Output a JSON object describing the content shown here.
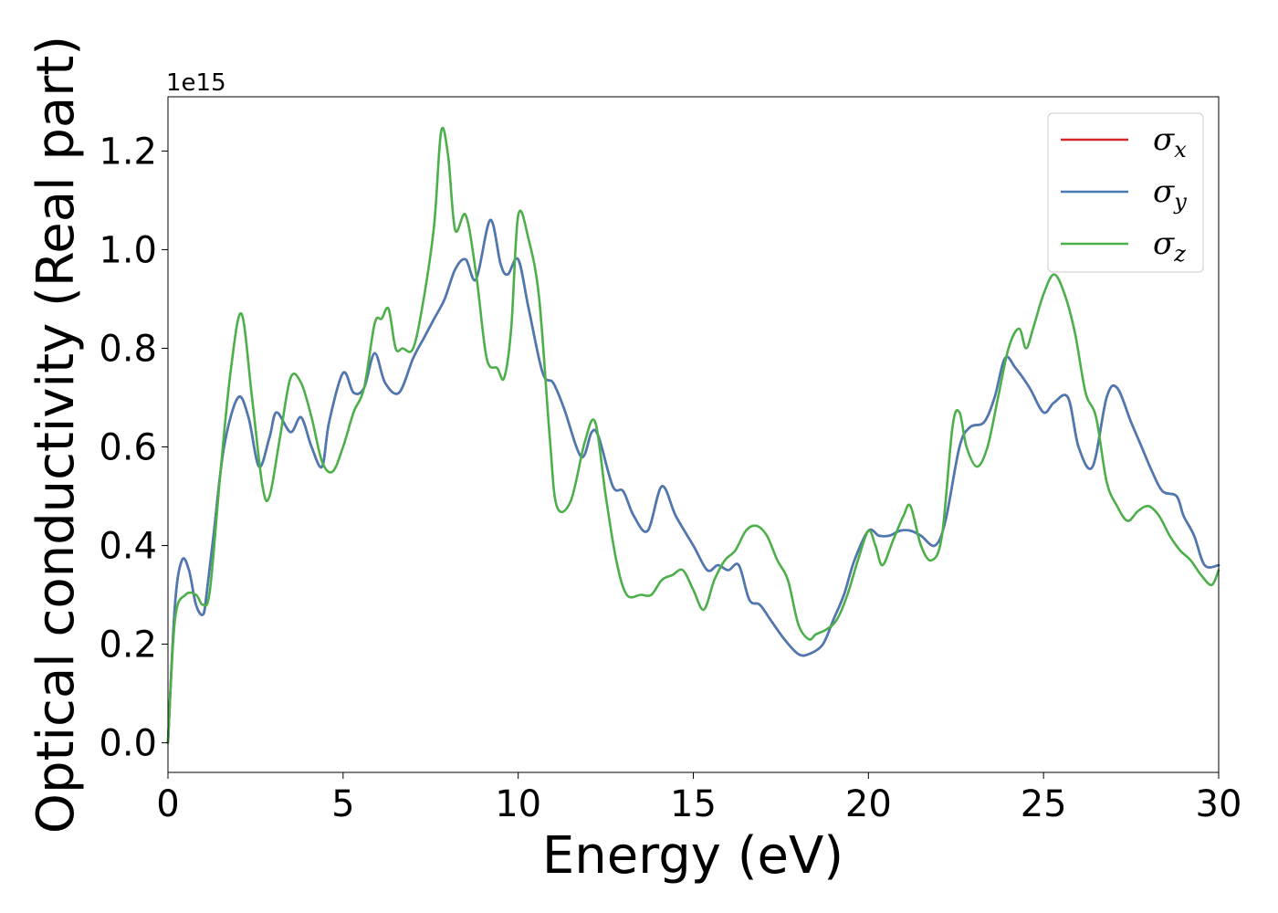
{
  "chart_data": {
    "type": "line",
    "xlabel": "Energy (eV)",
    "ylabel": "Optical conductivity (Real part)",
    "y_offset_label": "1e15",
    "xlim": [
      0,
      30
    ],
    "ylim": [
      -0.06,
      1.31
    ],
    "x_ticks": [
      0,
      5,
      10,
      15,
      20,
      25,
      30
    ],
    "x_tick_labels": [
      "0",
      "5",
      "10",
      "15",
      "20",
      "25",
      "30"
    ],
    "y_ticks": [
      0.0,
      0.2,
      0.4,
      0.6,
      0.8,
      1.0,
      1.2
    ],
    "y_tick_labels": [
      "0.0",
      "0.2",
      "0.4",
      "0.6",
      "0.8",
      "1.0",
      "1.2"
    ],
    "grid": false,
    "legend_position": "top-right",
    "series": [
      {
        "name": "σx",
        "label_base": "σ",
        "label_sub": "x",
        "color": "#d62728",
        "x": [
          0,
          0.2,
          0.4,
          0.6,
          0.8,
          1.0,
          1.1,
          1.3,
          1.6,
          2.0,
          2.3,
          2.6,
          2.9,
          3.1,
          3.5,
          3.8,
          4.1,
          4.4,
          4.6,
          5.0,
          5.3,
          5.6,
          5.9,
          6.2,
          6.6,
          7.0,
          7.3,
          7.6,
          7.9,
          8.2,
          8.5,
          8.8,
          9.2,
          9.5,
          9.7,
          10.0,
          10.3,
          10.7,
          11.0,
          11.3,
          11.8,
          12.1,
          12.3,
          12.7,
          13.0,
          13.3,
          13.7,
          14.1,
          14.5,
          15.0,
          15.4,
          15.7,
          16.0,
          16.3,
          16.6,
          16.9,
          17.2,
          17.6,
          18.0,
          18.3,
          18.7,
          19.0,
          19.3,
          19.6,
          20.0,
          20.3,
          20.6,
          20.9,
          21.2,
          21.5,
          21.9,
          22.2,
          22.6,
          22.9,
          23.3,
          23.6,
          23.9,
          24.2,
          24.6,
          25.0,
          25.3,
          25.7,
          26.0,
          26.4,
          26.8,
          27.1,
          27.5,
          27.8,
          28.1,
          28.4,
          28.8,
          29.0,
          29.3,
          29.6,
          30.0
        ],
        "y": [
          0.0,
          0.28,
          0.37,
          0.35,
          0.28,
          0.26,
          0.3,
          0.42,
          0.6,
          0.7,
          0.66,
          0.56,
          0.62,
          0.67,
          0.63,
          0.66,
          0.6,
          0.56,
          0.65,
          0.75,
          0.71,
          0.72,
          0.79,
          0.73,
          0.71,
          0.78,
          0.82,
          0.86,
          0.9,
          0.96,
          0.98,
          0.94,
          1.06,
          0.97,
          0.95,
          0.98,
          0.88,
          0.75,
          0.73,
          0.68,
          0.58,
          0.63,
          0.62,
          0.52,
          0.51,
          0.46,
          0.43,
          0.52,
          0.46,
          0.4,
          0.35,
          0.36,
          0.35,
          0.36,
          0.29,
          0.28,
          0.25,
          0.21,
          0.18,
          0.18,
          0.2,
          0.25,
          0.3,
          0.37,
          0.43,
          0.42,
          0.42,
          0.43,
          0.43,
          0.42,
          0.4,
          0.45,
          0.6,
          0.64,
          0.65,
          0.7,
          0.78,
          0.76,
          0.72,
          0.67,
          0.69,
          0.7,
          0.6,
          0.56,
          0.7,
          0.72,
          0.65,
          0.6,
          0.55,
          0.51,
          0.5,
          0.46,
          0.42,
          0.36,
          0.36
        ]
      },
      {
        "name": "σy",
        "label_base": "σ",
        "label_sub": "y",
        "color": "#4a7ab4",
        "x": [
          0,
          0.2,
          0.4,
          0.6,
          0.8,
          1.0,
          1.1,
          1.3,
          1.6,
          2.0,
          2.3,
          2.6,
          2.9,
          3.1,
          3.5,
          3.8,
          4.1,
          4.4,
          4.6,
          5.0,
          5.3,
          5.6,
          5.9,
          6.2,
          6.6,
          7.0,
          7.3,
          7.6,
          7.9,
          8.2,
          8.5,
          8.8,
          9.2,
          9.5,
          9.7,
          10.0,
          10.3,
          10.7,
          11.0,
          11.3,
          11.8,
          12.1,
          12.3,
          12.7,
          13.0,
          13.3,
          13.7,
          14.1,
          14.5,
          15.0,
          15.4,
          15.7,
          16.0,
          16.3,
          16.6,
          16.9,
          17.2,
          17.6,
          18.0,
          18.3,
          18.7,
          19.0,
          19.3,
          19.6,
          20.0,
          20.3,
          20.6,
          20.9,
          21.2,
          21.5,
          21.9,
          22.2,
          22.6,
          22.9,
          23.3,
          23.6,
          23.9,
          24.2,
          24.6,
          25.0,
          25.3,
          25.7,
          26.0,
          26.4,
          26.8,
          27.1,
          27.5,
          27.8,
          28.1,
          28.4,
          28.8,
          29.0,
          29.3,
          29.6,
          30.0
        ],
        "y": [
          0.0,
          0.28,
          0.37,
          0.35,
          0.28,
          0.26,
          0.3,
          0.42,
          0.6,
          0.7,
          0.66,
          0.56,
          0.62,
          0.67,
          0.63,
          0.66,
          0.6,
          0.56,
          0.65,
          0.75,
          0.71,
          0.72,
          0.79,
          0.73,
          0.71,
          0.78,
          0.82,
          0.86,
          0.9,
          0.96,
          0.98,
          0.94,
          1.06,
          0.97,
          0.95,
          0.98,
          0.88,
          0.75,
          0.73,
          0.68,
          0.58,
          0.63,
          0.62,
          0.52,
          0.51,
          0.46,
          0.43,
          0.52,
          0.46,
          0.4,
          0.35,
          0.36,
          0.35,
          0.36,
          0.29,
          0.28,
          0.25,
          0.21,
          0.18,
          0.18,
          0.2,
          0.25,
          0.3,
          0.37,
          0.43,
          0.42,
          0.42,
          0.43,
          0.43,
          0.42,
          0.4,
          0.45,
          0.6,
          0.64,
          0.65,
          0.7,
          0.78,
          0.76,
          0.72,
          0.67,
          0.69,
          0.7,
          0.6,
          0.56,
          0.7,
          0.72,
          0.65,
          0.6,
          0.55,
          0.51,
          0.5,
          0.46,
          0.42,
          0.36,
          0.36
        ]
      },
      {
        "name": "σz",
        "label_base": "σ",
        "label_sub": "z",
        "color": "#4daf4a",
        "x": [
          0,
          0.2,
          0.5,
          0.8,
          1.0,
          1.2,
          1.5,
          1.8,
          2.1,
          2.4,
          2.7,
          2.9,
          3.2,
          3.5,
          3.8,
          4.1,
          4.4,
          4.7,
          5.0,
          5.3,
          5.6,
          5.9,
          6.1,
          6.3,
          6.5,
          6.7,
          7.0,
          7.3,
          7.6,
          7.8,
          8.0,
          8.2,
          8.5,
          8.8,
          9.1,
          9.4,
          9.6,
          9.8,
          10.0,
          10.3,
          10.6,
          10.9,
          11.1,
          11.5,
          11.9,
          12.2,
          12.5,
          12.8,
          13.1,
          13.5,
          13.8,
          14.1,
          14.4,
          14.7,
          15.0,
          15.3,
          15.6,
          15.9,
          16.2,
          16.5,
          16.8,
          17.1,
          17.4,
          17.7,
          18.0,
          18.3,
          18.5,
          18.8,
          19.1,
          19.4,
          19.7,
          20.0,
          20.2,
          20.4,
          20.7,
          21.0,
          21.2,
          21.5,
          21.8,
          22.1,
          22.4,
          22.6,
          22.8,
          23.1,
          23.4,
          23.7,
          24.0,
          24.3,
          24.5,
          24.7,
          25.0,
          25.3,
          25.6,
          25.9,
          26.2,
          26.5,
          26.8,
          27.1,
          27.4,
          27.7,
          28.0,
          28.3,
          28.6,
          28.9,
          29.2,
          29.5,
          29.8,
          30.0
        ],
        "y": [
          0.0,
          0.25,
          0.3,
          0.3,
          0.28,
          0.31,
          0.55,
          0.76,
          0.87,
          0.7,
          0.52,
          0.5,
          0.62,
          0.74,
          0.73,
          0.66,
          0.57,
          0.55,
          0.6,
          0.67,
          0.72,
          0.85,
          0.86,
          0.88,
          0.8,
          0.8,
          0.8,
          0.9,
          1.05,
          1.24,
          1.19,
          1.04,
          1.07,
          0.95,
          0.78,
          0.76,
          0.74,
          0.84,
          1.07,
          1.02,
          0.9,
          0.62,
          0.48,
          0.49,
          0.61,
          0.65,
          0.5,
          0.37,
          0.3,
          0.3,
          0.3,
          0.33,
          0.34,
          0.35,
          0.31,
          0.27,
          0.33,
          0.37,
          0.39,
          0.43,
          0.44,
          0.42,
          0.37,
          0.33,
          0.24,
          0.21,
          0.22,
          0.23,
          0.25,
          0.3,
          0.37,
          0.43,
          0.4,
          0.36,
          0.41,
          0.46,
          0.48,
          0.4,
          0.37,
          0.42,
          0.64,
          0.67,
          0.6,
          0.56,
          0.6,
          0.7,
          0.8,
          0.84,
          0.8,
          0.84,
          0.91,
          0.95,
          0.91,
          0.83,
          0.71,
          0.66,
          0.53,
          0.48,
          0.45,
          0.47,
          0.48,
          0.46,
          0.42,
          0.39,
          0.37,
          0.34,
          0.32,
          0.35
        ]
      }
    ]
  }
}
